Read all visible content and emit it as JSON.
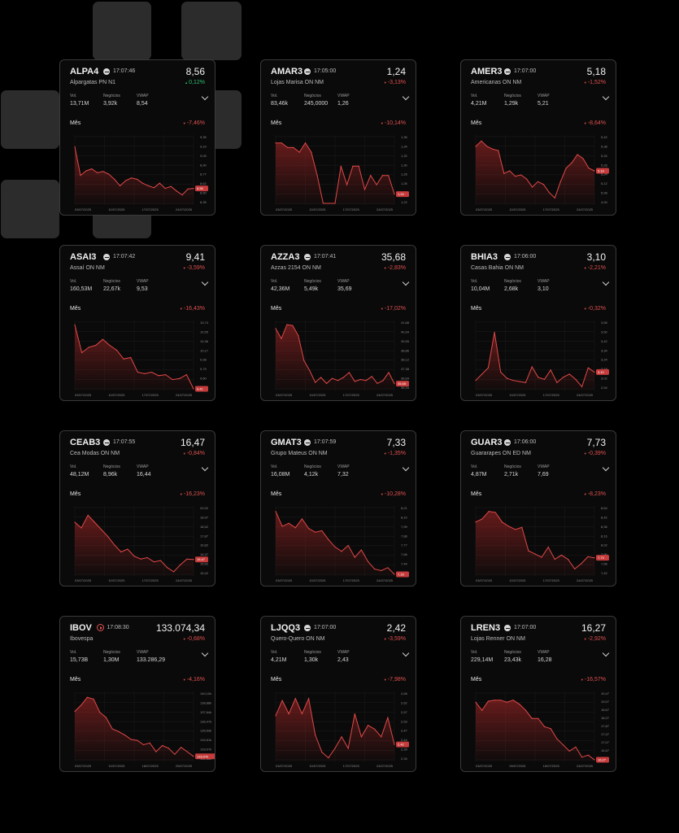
{
  "cards": [
    {
      "ticker": "ALPA4",
      "time": "17:07:46",
      "price": "8,56",
      "name": "Alpargatas PN N1",
      "change": "0,12%",
      "change_dir": "up",
      "stats": [
        {
          "label": "Vol.",
          "value": "13,71M"
        },
        {
          "label": "Negócios",
          "value": "3,92k"
        },
        {
          "label": "VWAP",
          "value": "8,54"
        }
      ],
      "period_label": "Mês",
      "period_change": "-7,46%",
      "yticks": [
        "9,35",
        "9,19",
        "9,05",
        "8,90",
        "8,77",
        "8,62",
        "8,50",
        "8,35"
      ],
      "xticks": [
        "03/07/2025",
        "10/07/2025",
        "17/07/2025",
        "24/07/2025"
      ],
      "ymin": 8.35,
      "ymax": 9.35,
      "last_tag": "8,56",
      "series": [
        9.22,
        8.78,
        8.85,
        8.88,
        8.82,
        8.84,
        8.8,
        8.72,
        8.62,
        8.7,
        8.74,
        8.72,
        8.66,
        8.62,
        8.59,
        8.66,
        8.58,
        8.61,
        8.54,
        8.48,
        8.57,
        8.58
      ]
    },
    {
      "ticker": "AMAR3",
      "time": "17:05:00",
      "price": "1,24",
      "name": "Lojas Marisa ON NM",
      "change": "-3,13%",
      "change_dir": "down",
      "stats": [
        {
          "label": "Vol.",
          "value": "83,46k"
        },
        {
          "label": "Negócios",
          "value": "245,0000"
        },
        {
          "label": "VWAP",
          "value": "1,26"
        }
      ],
      "period_label": "Mês",
      "period_change": "-10,14%",
      "yticks": [
        "1,36",
        "1,34",
        "1,32",
        "1,30",
        "1,28",
        "1,26",
        "1,24",
        "1,22"
      ],
      "xticks": [
        "03/07/2025",
        "10/07/2025",
        "17/07/2025",
        "24/07/2025"
      ],
      "ymin": 1.22,
      "ymax": 1.36,
      "last_tag": "1,24",
      "series": [
        1.35,
        1.35,
        1.34,
        1.34,
        1.33,
        1.35,
        1.33,
        1.28,
        1.22,
        1.22,
        1.22,
        1.3,
        1.26,
        1.3,
        1.3,
        1.25,
        1.28,
        1.26,
        1.28,
        1.28,
        1.24
      ]
    },
    {
      "ticker": "AMER3",
      "time": "17:07:00",
      "price": "5,18",
      "name": "Americanas ON NM",
      "change": "-1,52%",
      "change_dir": "down",
      "stats": [
        {
          "label": "Vol.",
          "value": "4,21M"
        },
        {
          "label": "Negócios",
          "value": "1,29k"
        },
        {
          "label": "VWAP",
          "value": "5,21"
        }
      ],
      "period_label": "Mês",
      "period_change": "-8,64%",
      "yticks": [
        "5,42",
        "5,38",
        "5,34",
        "5,28",
        "5,24",
        "5,12",
        "5,08",
        "4,94"
      ],
      "xticks": [
        "03/07/2025",
        "10/07/2025",
        "17/07/2025",
        "24/07/2025"
      ],
      "ymin": 4.94,
      "ymax": 5.42,
      "last_tag": "5,18",
      "series": [
        5.36,
        5.4,
        5.36,
        5.34,
        5.33,
        5.16,
        5.18,
        5.14,
        5.15,
        5.12,
        5.06,
        5.1,
        5.08,
        5.02,
        4.98,
        5.1,
        5.2,
        5.24,
        5.3,
        5.27,
        5.2,
        5.18
      ]
    },
    {
      "ticker": "ASAI3",
      "time": "17:07:42",
      "price": "9,41",
      "name": "Assaí ON NM",
      "change": "-3,59%",
      "change_dir": "down",
      "stats": [
        {
          "label": "Vol.",
          "value": "160,53M"
        },
        {
          "label": "Negócios",
          "value": "22,67k"
        },
        {
          "label": "VWAP",
          "value": "9,53"
        }
      ],
      "period_label": "Mês",
      "period_change": "-16,43%",
      "yticks": [
        "10,74",
        "10,55",
        "10,36",
        "10,17",
        "9,98",
        "9,79",
        "9,60",
        "9,41"
      ],
      "xticks": [
        "03/07/2025",
        "10/07/2025",
        "17/07/2025",
        "24/07/2025"
      ],
      "ymin": 9.41,
      "ymax": 10.74,
      "last_tag": "9,41",
      "series": [
        10.72,
        10.15,
        10.26,
        10.3,
        10.42,
        10.3,
        10.2,
        10.02,
        10.05,
        9.75,
        9.72,
        9.75,
        9.68,
        9.7,
        9.6,
        9.62,
        9.7,
        9.41
      ]
    },
    {
      "ticker": "AZZA3",
      "time": "17:07:41",
      "price": "35,68",
      "name": "Azzas 2154 ON NM",
      "change": "-2,83%",
      "change_dir": "down",
      "stats": [
        {
          "label": "Vol.",
          "value": "42,36M"
        },
        {
          "label": "Negócios",
          "value": "5,49k"
        },
        {
          "label": "VWAP",
          "value": "35,69"
        }
      ],
      "period_label": "Mês",
      "period_change": "-17,02%",
      "yticks": [
        "41,68",
        "40,34",
        "39,55",
        "38,86",
        "38,12",
        "37,38",
        "36,64",
        "35,16"
      ],
      "xticks": [
        "03/07/2025",
        "10/07/2025",
        "17/07/2025",
        "24/07/2025"
      ],
      "ymin": 35.16,
      "ymax": 41.68,
      "last_tag": "35,68",
      "series": [
        41.2,
        40.2,
        41.6,
        41.5,
        40.5,
        38.0,
        37.0,
        35.8,
        36.3,
        35.7,
        36.2,
        36.0,
        36.3,
        36.8,
        35.9,
        36.1,
        36.0,
        36.4,
        35.7,
        36.0,
        36.8,
        35.68
      ]
    },
    {
      "ticker": "BHIA3",
      "time": "17:06:00",
      "price": "3,10",
      "name": "Casas Bahia ON NM",
      "change": "-2,21%",
      "change_dir": "down",
      "stats": [
        {
          "label": "Vol.",
          "value": "10,04M"
        },
        {
          "label": "Negócios",
          "value": "2,68k"
        },
        {
          "label": "VWAP",
          "value": "3,10"
        }
      ],
      "period_label": "Mês",
      "period_change": "-0,32%",
      "yticks": [
        "3,56",
        "3,50",
        "3,42",
        "3,34",
        "3,24",
        "3,18",
        "3,02",
        "2,94"
      ],
      "xticks": [
        "03/07/2025",
        "10/07/2025",
        "17/07/2025",
        "24/07/2025"
      ],
      "ymin": 2.94,
      "ymax": 3.56,
      "last_tag": "3,10",
      "series": [
        3.02,
        3.08,
        3.14,
        3.48,
        3.1,
        3.04,
        3.02,
        3.01,
        3.0,
        3.15,
        3.05,
        3.03,
        3.12,
        3.0,
        3.05,
        3.08,
        3.03,
        2.96,
        3.14,
        3.1
      ]
    },
    {
      "ticker": "CEAB3",
      "time": "17:07:55",
      "price": "16,47",
      "name": "Cea Modas ON NM",
      "change": "-0,84%",
      "change_dir": "down",
      "stats": [
        {
          "label": "Vol.",
          "value": "48,12M"
        },
        {
          "label": "Negócios",
          "value": "8,96k"
        },
        {
          "label": "VWAP",
          "value": "16,44"
        }
      ],
      "period_label": "Mês",
      "period_change": "-16,23%",
      "yticks": [
        "20,02",
        "18,97",
        "18,52",
        "17,87",
        "16,82",
        "16,37",
        "15,92",
        "15,42"
      ],
      "xticks": [
        "03/07/2025",
        "10/07/2025",
        "17/07/2025",
        "24/07/2025"
      ],
      "ymin": 15.42,
      "ymax": 20.02,
      "last_tag": "16,47",
      "series": [
        19.1,
        18.7,
        19.6,
        19.1,
        18.6,
        18.1,
        17.5,
        17.0,
        17.2,
        16.7,
        16.5,
        16.6,
        16.3,
        16.4,
        15.9,
        15.6,
        16.1,
        16.5,
        16.47
      ]
    },
    {
      "ticker": "GMAT3",
      "time": "17:07:59",
      "price": "7,33",
      "name": "Grupo Mateus ON NM",
      "change": "-1,35%",
      "change_dir": "down",
      "stats": [
        {
          "label": "Vol.",
          "value": "16,08M"
        },
        {
          "label": "Negócios",
          "value": "4,12k"
        },
        {
          "label": "VWAP",
          "value": "7,32"
        }
      ],
      "period_label": "Mês",
      "period_change": "-10,28%",
      "yticks": [
        "8,21",
        "8,10",
        "7,99",
        "7,88",
        "7,77",
        "7,66",
        "7,44",
        "7,33"
      ],
      "xticks": [
        "03/07/2025",
        "10/07/2025",
        "17/07/2025",
        "24/07/2025"
      ],
      "ymin": 7.33,
      "ymax": 8.21,
      "last_tag": "7,33",
      "series": [
        8.18,
        7.98,
        8.02,
        7.96,
        8.08,
        7.95,
        7.9,
        7.92,
        7.8,
        7.7,
        7.64,
        7.72,
        7.56,
        7.66,
        7.5,
        7.4,
        7.38,
        7.42,
        7.33
      ]
    },
    {
      "ticker": "GUAR3",
      "time": "17:06:00",
      "price": "7,73",
      "name": "Guararapes ON ED NM",
      "change": "-0,39%",
      "change_dir": "down",
      "stats": [
        {
          "label": "Vol.",
          "value": "4,87M"
        },
        {
          "label": "Negócios",
          "value": "2,71k"
        },
        {
          "label": "VWAP",
          "value": "7,69"
        }
      ],
      "period_label": "Mês",
      "period_change": "-8,23%",
      "yticks": [
        "8,64",
        "8,42",
        "8,36",
        "8,16",
        "8,02",
        "7,90",
        "7,58",
        "7,42"
      ],
      "xticks": [
        "03/07/2025",
        "10/07/2025",
        "17/07/2025",
        "24/07/2025"
      ],
      "ymin": 7.42,
      "ymax": 8.64,
      "last_tag": "7,73",
      "series": [
        8.4,
        8.46,
        8.6,
        8.58,
        8.4,
        8.32,
        8.26,
        8.3,
        7.86,
        7.8,
        7.74,
        7.93,
        7.7,
        7.78,
        7.7,
        7.52,
        7.62,
        7.75,
        7.73
      ]
    },
    {
      "ticker": "IBOV",
      "time": "17:08:30",
      "price": "133.074,34",
      "name": "Ibovespa",
      "change": "-0,68%",
      "change_dir": "down",
      "icon": "play",
      "stats": [
        {
          "label": "Vol.",
          "value": "15,73B"
        },
        {
          "label": "Negócios",
          "value": "1,30M"
        },
        {
          "label": "VWAP",
          "value": "133.286,29"
        }
      ],
      "period_label": "Mês",
      "period_change": "-4,16%",
      "yticks": [
        "140,10k",
        "138,88k",
        "137,64k",
        "136,47k",
        "135,53k",
        "134,61k",
        "133,07k",
        "132,68k"
      ],
      "xticks": [
        "03/07/2025",
        "10/07/2025",
        "18/07/2025",
        "25/07/2025"
      ],
      "ymin": 132.68,
      "ymax": 140.1,
      "last_tag": "133,07k",
      "series": [
        138.2,
        138.9,
        139.8,
        139.6,
        138.1,
        137.5,
        136.2,
        135.9,
        135.5,
        135.0,
        134.9,
        134.4,
        134.6,
        133.6,
        134.3,
        134.0,
        133.3,
        134.1,
        133.6,
        133.07
      ]
    },
    {
      "ticker": "LJQQ3",
      "time": "17:07:00",
      "price": "2,42",
      "name": "Quero-Quero ON NM",
      "change": "-3,59%",
      "change_dir": "down",
      "stats": [
        {
          "label": "Vol.",
          "value": "4,21M"
        },
        {
          "label": "Negócios",
          "value": "1,30k"
        },
        {
          "label": "VWAP",
          "value": "2,43"
        }
      ],
      "period_label": "Mês",
      "period_change": "-7,98%",
      "yticks": [
        "2,68",
        "2,62",
        "2,57",
        "2,53",
        "2,47",
        "2,44",
        "2,39",
        "2,34"
      ],
      "xticks": [
        "03/07/2025",
        "10/07/2025",
        "17/07/2025",
        "24/07/2025"
      ],
      "ymin": 2.34,
      "ymax": 2.68,
      "last_tag": "2,42",
      "series": [
        2.57,
        2.65,
        2.58,
        2.66,
        2.58,
        2.66,
        2.47,
        2.38,
        2.35,
        2.4,
        2.46,
        2.4,
        2.58,
        2.46,
        2.52,
        2.5,
        2.46,
        2.56,
        2.42
      ]
    },
    {
      "ticker": "LREN3",
      "time": "17:07:00",
      "price": "16,27",
      "name": "Lojas Renner ON NM",
      "change": "-2,92%",
      "change_dir": "down",
      "stats": [
        {
          "label": "Vol.",
          "value": "229,14M"
        },
        {
          "label": "Negócios",
          "value": "23,43k"
        },
        {
          "label": "VWAP",
          "value": "16,28"
        }
      ],
      "period_label": "Mês",
      "period_change": "-16,57%",
      "yticks": [
        "19,47",
        "19,07",
        "18,67",
        "18,27",
        "17,87",
        "17,47",
        "17,07",
        "16,67",
        "16,27"
      ],
      "xticks": [
        "03/07/2025",
        "09/07/2025",
        "16/07/2025",
        "24/07/2025"
      ],
      "ymin": 16.27,
      "ymax": 19.47,
      "last_tag": "16,27",
      "series": [
        19.1,
        18.7,
        19.15,
        19.2,
        19.2,
        19.1,
        19.2,
        19.0,
        18.7,
        18.3,
        18.3,
        17.9,
        17.8,
        17.3,
        17.0,
        16.7,
        16.9,
        16.4,
        16.5,
        16.27
      ]
    }
  ]
}
